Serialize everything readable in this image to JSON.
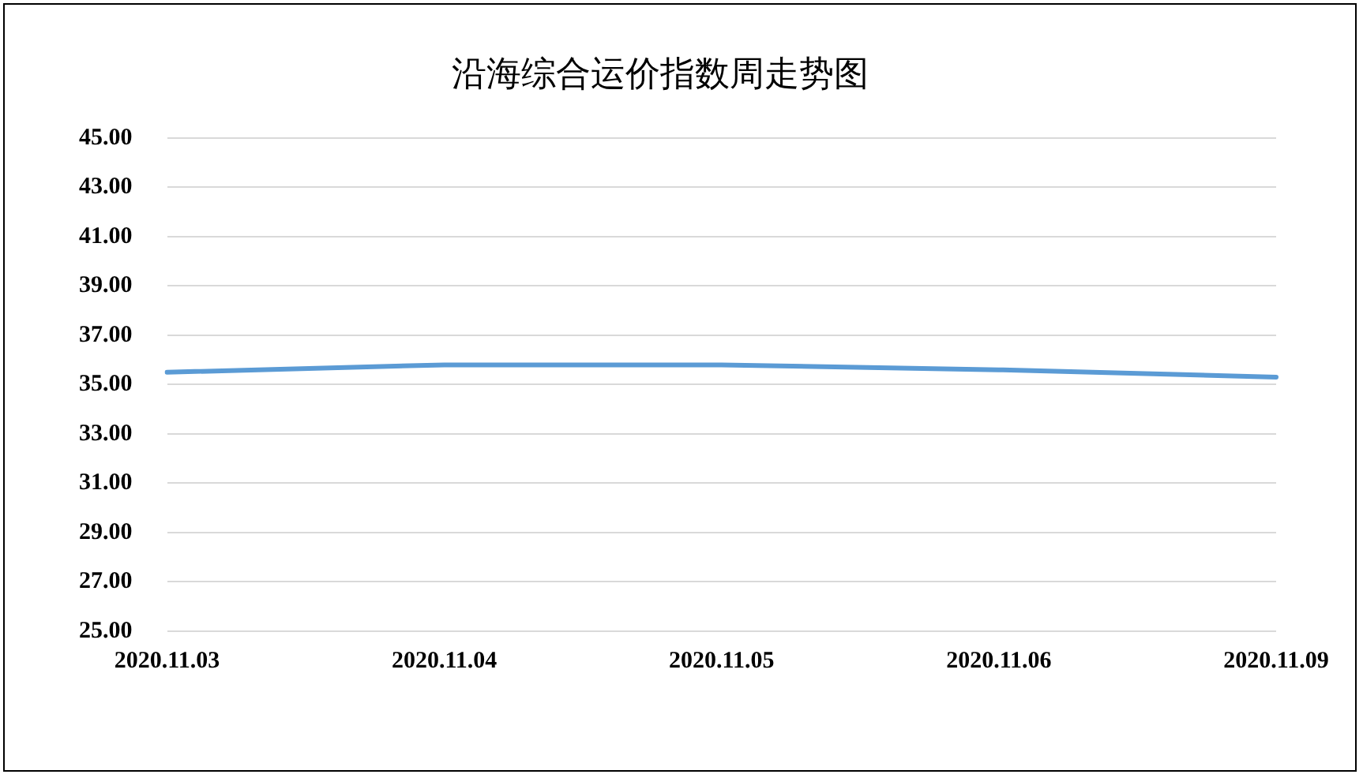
{
  "chart_data": {
    "type": "line",
    "title": "沿海综合运价指数周走势图",
    "categories": [
      "2020.11.03",
      "2020.11.04",
      "2020.11.05",
      "2020.11.06",
      "2020.11.09"
    ],
    "series": [
      {
        "color": "#5b9bd5",
        "values": [
          35.5,
          35.8,
          35.8,
          35.6,
          35.3
        ]
      }
    ],
    "ylim": [
      25,
      45
    ],
    "yticks": [
      {
        "value": 25,
        "label": "25.00"
      },
      {
        "value": 27,
        "label": "27.00"
      },
      {
        "value": 29,
        "label": "29.00"
      },
      {
        "value": 31,
        "label": "31.00"
      },
      {
        "value": 33,
        "label": "33.00"
      },
      {
        "value": 35,
        "label": "35.00"
      },
      {
        "value": 37,
        "label": "37.00"
      },
      {
        "value": 39,
        "label": "39.00"
      },
      {
        "value": 41,
        "label": "41.00"
      },
      {
        "value": 43,
        "label": "43.00"
      },
      {
        "value": 45,
        "label": "45.00"
      }
    ],
    "grid": "y",
    "marker": "none",
    "line_style": "solid"
  }
}
